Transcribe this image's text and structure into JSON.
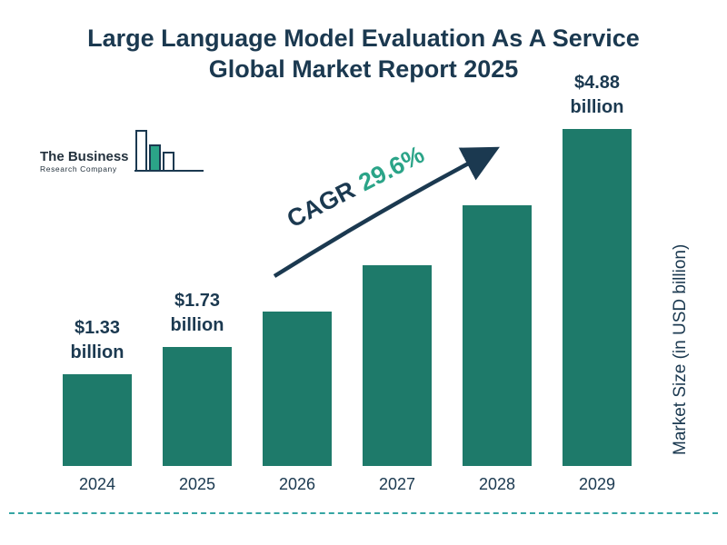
{
  "title": {
    "line1": "Large Language Model Evaluation As A Service",
    "line2": "Global Market Report 2025"
  },
  "logo": {
    "line1": "The Business",
    "line2": "Research Company"
  },
  "cagr": {
    "label": "CAGR",
    "value": "29.6%"
  },
  "ylabel": "Market Size (in USD billion)",
  "colors": {
    "bar": "#1e7a6a",
    "navy_text": "#1b3950",
    "teal_accent": "#2ba488",
    "dashed_line": "#35a5a3"
  },
  "chart_data": {
    "type": "bar",
    "title": "Large Language Model Evaluation As A Service Global Market Report 2025",
    "categories": [
      "2024",
      "2025",
      "2026",
      "2027",
      "2028",
      "2029"
    ],
    "values": [
      1.33,
      1.73,
      2.24,
      2.91,
      3.77,
      4.88
    ],
    "unit": "USD billion",
    "labels": [
      {
        "amount": "$1.33",
        "unit": "billion"
      },
      {
        "amount": "$1.73",
        "unit": "billion"
      },
      null,
      null,
      null,
      {
        "amount": "$4.88",
        "unit": "billion"
      }
    ],
    "annotations": {
      "cagr": "29.6%"
    },
    "xlabel": "",
    "ylabel": "Market Size (in USD billion)",
    "ylim": [
      0,
      5
    ],
    "grid": false,
    "legend": false
  }
}
